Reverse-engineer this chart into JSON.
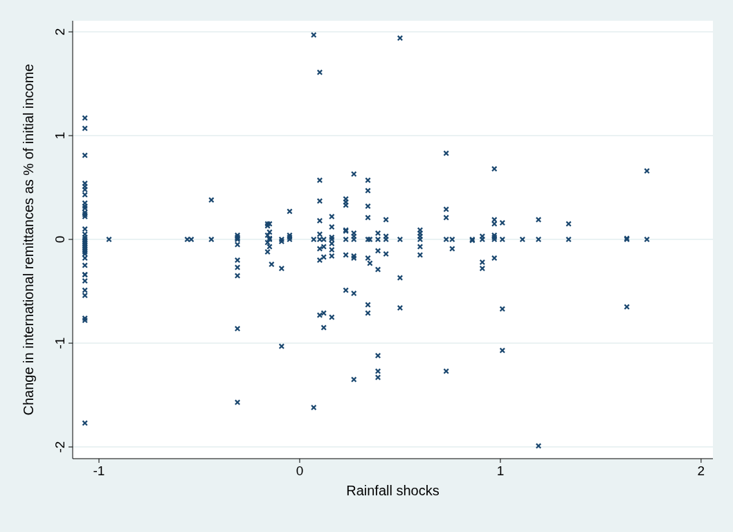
{
  "chart_data": {
    "type": "scatter",
    "xlabel": "Rainfall shocks",
    "ylabel": "Change in international remittances as % of initial income",
    "xlim": [
      -1.131,
      2.059
    ],
    "ylim": [
      -2.113,
      2.107
    ],
    "xticks": [
      -1,
      0,
      1,
      2
    ],
    "yticks": [
      -2,
      -1,
      0,
      1,
      2
    ],
    "grid": "y",
    "marker": "cross",
    "series": [
      {
        "color": "#1a476f",
        "x": [
          -1.07,
          -1.07,
          -1.07,
          -1.07,
          -1.07,
          -1.07,
          -1.07,
          -1.07,
          -1.07,
          -1.07,
          -1.07,
          -1.07,
          -1.07,
          -1.07,
          -1.07,
          -1.07,
          -1.07,
          -1.07,
          -1.07,
          -1.07,
          -1.07,
          -1.07,
          -1.07,
          -1.07,
          -1.07,
          -1.07,
          -1.07,
          -1.07,
          -1.07,
          -1.07,
          -1.07,
          -1.07,
          -1.07,
          -1.07,
          -0.95,
          -0.56,
          -0.54,
          -0.44,
          -0.44,
          -0.31,
          -0.31,
          -0.31,
          -0.31,
          -0.31,
          -0.31,
          -0.31,
          -0.31,
          -0.31,
          -0.31,
          -0.16,
          -0.16,
          -0.15,
          -0.15,
          -0.16,
          -0.15,
          -0.16,
          -0.15,
          -0.14,
          -0.16,
          -0.15,
          -0.09,
          -0.09,
          -0.09,
          -0.09,
          -0.05,
          -0.05,
          -0.05,
          -0.05,
          0.07,
          0.07,
          0.07,
          0.1,
          0.1,
          0.1,
          0.1,
          0.1,
          0.1,
          0.1,
          0.1,
          0.1,
          0.12,
          0.12,
          0.12,
          0.12,
          0.12,
          0.16,
          0.16,
          0.16,
          0.16,
          0.16,
          0.16,
          0.16,
          0.16,
          0.23,
          0.23,
          0.23,
          0.23,
          0.23,
          0.23,
          0.23,
          0.23,
          0.27,
          0.27,
          0.27,
          0.27,
          0.27,
          0.27,
          0.27,
          0.27,
          0.34,
          0.34,
          0.34,
          0.34,
          0.34,
          0.34,
          0.35,
          0.34,
          0.34,
          0.35,
          0.39,
          0.39,
          0.39,
          0.39,
          0.39,
          0.39,
          0.39,
          0.43,
          0.43,
          0.43,
          0.43,
          0.5,
          0.5,
          0.5,
          0.5,
          0.6,
          0.6,
          0.6,
          0.6,
          0.6,
          0.6,
          0.73,
          0.73,
          0.73,
          0.73,
          0.73,
          0.76,
          0.76,
          0.86,
          0.86,
          0.91,
          0.91,
          0.91,
          0.91,
          0.97,
          0.97,
          0.97,
          0.97,
          0.97,
          0.97,
          0.97,
          1.01,
          1.01,
          1.01,
          1.01,
          1.11,
          1.19,
          1.19,
          1.19,
          1.34,
          1.34,
          1.63,
          1.63,
          1.63,
          1.73,
          1.73
        ],
        "values": [
          1.17,
          1.07,
          0.81,
          0.54,
          0.51,
          0.43,
          0.35,
          0.32,
          0.26,
          0.22,
          0.1,
          0.05,
          0.02,
          0,
          -0.02,
          -0.04,
          -0.06,
          -0.08,
          -0.1,
          -0.12,
          -0.14,
          -0.18,
          -0.25,
          -0.34,
          -0.34,
          -0.4,
          -0.49,
          -0.54,
          -0.76,
          -0.78,
          -1.77,
          0.48,
          0.3,
          0.24,
          0,
          0,
          0,
          0.38,
          0,
          0.04,
          0.02,
          0,
          -0.05,
          -0.2,
          -0.27,
          -0.35,
          -0.86,
          -1.57,
          0.01,
          0.15,
          0.13,
          0.15,
          0.07,
          0.04,
          0,
          -0.03,
          -0.07,
          -0.24,
          -0.12,
          0.01,
          0,
          -0.02,
          -0.28,
          -1.03,
          0.27,
          0.04,
          0.02,
          0,
          1.97,
          0,
          -1.62,
          1.61,
          0.57,
          0.37,
          0.18,
          0.05,
          0,
          -0.09,
          -0.2,
          -0.73,
          0,
          -0.07,
          -0.17,
          -0.71,
          -0.85,
          0.22,
          0.12,
          0.02,
          0,
          -0.04,
          -0.1,
          -0.16,
          -0.75,
          0.39,
          0.36,
          0.33,
          0.09,
          0.08,
          0,
          -0.15,
          -0.49,
          0.63,
          0.06,
          0.03,
          0,
          -0.16,
          -0.18,
          -0.52,
          -1.35,
          0.57,
          0.47,
          0.32,
          0.21,
          0,
          -0.18,
          -0.23,
          -0.63,
          -0.71,
          0,
          0.06,
          0,
          -0.11,
          -0.29,
          -1.12,
          -1.27,
          -1.33,
          0.19,
          0.03,
          0,
          -0.14,
          1.94,
          0,
          -0.37,
          -0.66,
          0.09,
          0.06,
          0.03,
          0,
          -0.07,
          -0.15,
          0.83,
          0.29,
          0.21,
          0,
          -1.27,
          0,
          -0.09,
          0,
          -0.01,
          0.03,
          0,
          -0.22,
          -0.28,
          0.68,
          0.19,
          0.15,
          0.04,
          0.02,
          0,
          -0.18,
          0.16,
          0,
          -0.67,
          -1.07,
          0,
          0.19,
          0,
          -1.99,
          0.15,
          0,
          0.01,
          0,
          -0.65,
          0.66,
          0
        ]
      }
    ]
  }
}
